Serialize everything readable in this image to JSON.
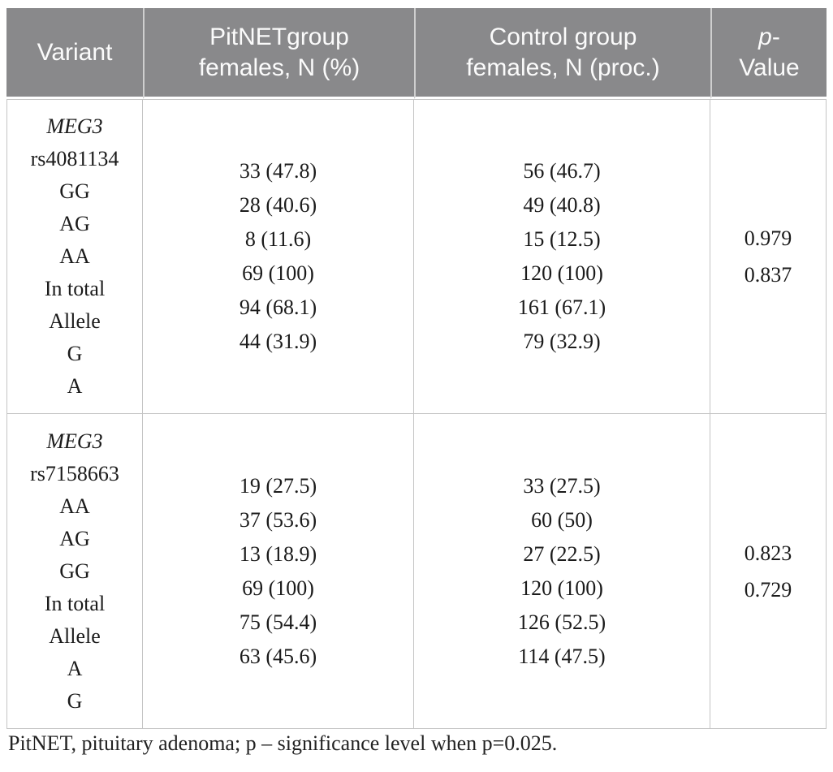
{
  "header": {
    "variant": "Variant",
    "pitnet_line1": "PitNETgroup",
    "pitnet_line2": "females, N (%)",
    "control_line1": "Control group",
    "control_line2": "females, N (proc.)",
    "p_italic": "p",
    "p_dash": "-",
    "p_line2": "Value"
  },
  "rows": [
    {
      "gene": "MEG3",
      "variant_lines": [
        "rs4081134",
        "GG",
        "AG",
        "AA",
        "In total",
        "Allele",
        "G",
        "A"
      ],
      "pitnet": [
        "33 (47.8)",
        "28 (40.6)",
        "8 (11.6)",
        "69 (100)",
        "94 (68.1)",
        "44 (31.9)"
      ],
      "control": [
        "56 (46.7)",
        "49 (40.8)",
        "15 (12.5)",
        "120 (100)",
        "161 (67.1)",
        "79 (32.9)"
      ],
      "p": [
        "0.979",
        "0.837"
      ]
    },
    {
      "gene": "MEG3",
      "variant_lines": [
        "rs7158663",
        "AA",
        "AG",
        "GG",
        "In total",
        "Allele",
        "A",
        "G"
      ],
      "pitnet": [
        "19 (27.5)",
        "37 (53.6)",
        "13 (18.9)",
        "69 (100)",
        "75 (54.4)",
        "63 (45.6)"
      ],
      "control": [
        "33 (27.5)",
        "60 (50)",
        "27 (22.5)",
        "120 (100)",
        "126 (52.5)",
        "114 (47.5)"
      ],
      "p": [
        "0.823",
        "0.729"
      ]
    }
  ],
  "footnote": "PitNET, pituitary adenoma; p – significance level when p=0.025.",
  "colors": {
    "header_bg": "#89898b",
    "header_text": "#fbfbfb",
    "body_text": "#1b1b1b",
    "cell_border": "#c4c4c4",
    "header_divider": "#cfcfcf",
    "page_bg": "#ffffff"
  }
}
